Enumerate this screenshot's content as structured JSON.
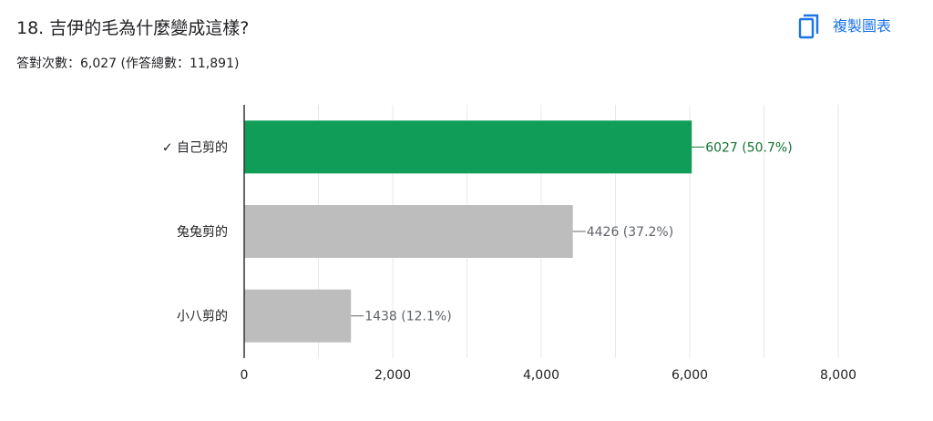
{
  "question": {
    "title": "18. 吉伊的毛為什麼變成這樣?",
    "stats": "答對次數：6,027 (作答總數：11,891)"
  },
  "toolbar": {
    "copy_label": "複製圖表",
    "copy_icon": "copy-icon"
  },
  "colors": {
    "correct_bar": "#0f9d58",
    "other_bar": "#bdbdbd",
    "correct_text": "#137333",
    "other_text": "#5f6368",
    "accent": "#1a73e8"
  },
  "chart_data": {
    "type": "bar",
    "orientation": "horizontal",
    "categories": [
      "✓ 自己剪的",
      "兔兔剪的",
      "小八剪的"
    ],
    "values": [
      6027,
      4426,
      1438
    ],
    "value_labels": [
      "6027 (50.7%)",
      "4426 (37.2%)",
      "1438 (12.1%)"
    ],
    "correct": [
      true,
      false,
      false
    ],
    "xlim": [
      0,
      8000
    ],
    "x_ticks": [
      0,
      2000,
      4000,
      6000,
      8000
    ],
    "x_tick_labels": [
      "0",
      "2,000",
      "4,000",
      "6,000",
      "8,000"
    ],
    "grid": "vertical"
  }
}
